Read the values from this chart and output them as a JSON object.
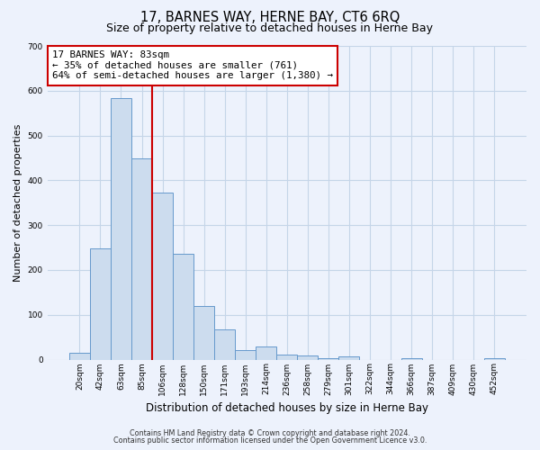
{
  "title": "17, BARNES WAY, HERNE BAY, CT6 6RQ",
  "subtitle": "Size of property relative to detached houses in Herne Bay",
  "xlabel": "Distribution of detached houses by size in Herne Bay",
  "ylabel": "Number of detached properties",
  "bar_labels": [
    "20sqm",
    "42sqm",
    "63sqm",
    "85sqm",
    "106sqm",
    "128sqm",
    "150sqm",
    "171sqm",
    "193sqm",
    "214sqm",
    "236sqm",
    "258sqm",
    "279sqm",
    "301sqm",
    "322sqm",
    "344sqm",
    "366sqm",
    "387sqm",
    "409sqm",
    "430sqm",
    "452sqm"
  ],
  "bar_values": [
    15,
    248,
    583,
    448,
    372,
    237,
    120,
    67,
    22,
    30,
    12,
    10,
    3,
    8,
    0,
    0,
    3,
    0,
    0,
    0,
    3
  ],
  "bar_color": "#ccdcee",
  "bar_edge_color": "#6699cc",
  "vline_color": "#cc0000",
  "vline_pos": 3.5,
  "annotation_line1": "17 BARNES WAY: 83sqm",
  "annotation_line2": "← 35% of detached houses are smaller (761)",
  "annotation_line3": "64% of semi-detached houses are larger (1,380) →",
  "annotation_box_color": "#ffffff",
  "annotation_box_edge": "#cc0000",
  "ylim": [
    0,
    700
  ],
  "yticks": [
    0,
    100,
    200,
    300,
    400,
    500,
    600,
    700
  ],
  "grid_color": "#c5d5e8",
  "background_color": "#edf2fc",
  "title_fontsize": 10.5,
  "subtitle_fontsize": 9,
  "footer_line1": "Contains HM Land Registry data © Crown copyright and database right 2024.",
  "footer_line2": "Contains public sector information licensed under the Open Government Licence v3.0."
}
